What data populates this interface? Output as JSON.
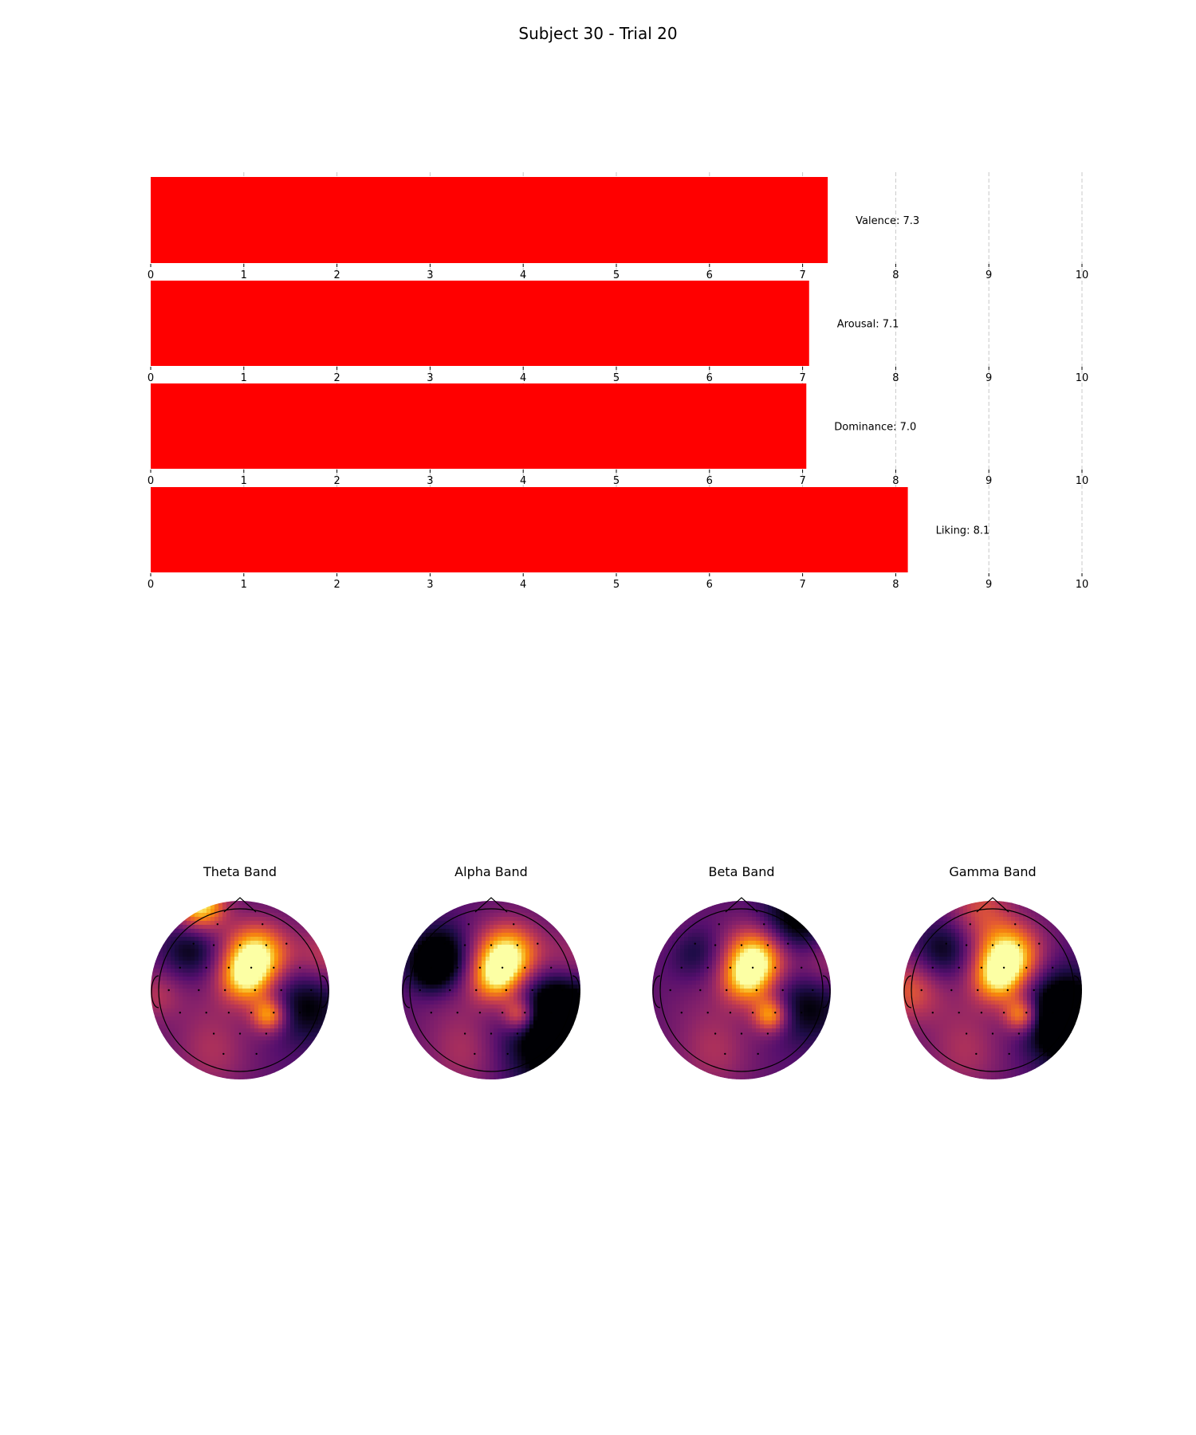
{
  "title": "Subject 30 - Trial 20",
  "chart_data": [
    {
      "type": "bar",
      "orientation": "horizontal",
      "title": "Subject 30 - Trial 20",
      "xlim": [
        0,
        10
      ],
      "xticks": [
        0,
        1,
        2,
        3,
        4,
        5,
        6,
        7,
        8,
        9,
        10
      ],
      "grid": "vertical dashed",
      "bar_color": "#ff0000",
      "bars": [
        {
          "name": "Valence",
          "value": 7.27,
          "label": "Valence: 7.3"
        },
        {
          "name": "Arousal",
          "value": 7.07,
          "label": "Arousal: 7.1"
        },
        {
          "name": "Dominance",
          "value": 7.04,
          "label": "Dominance: 7.0"
        },
        {
          "name": "Liking",
          "value": 8.13,
          "label": "Liking: 8.1"
        }
      ]
    },
    {
      "type": "heatmap",
      "kind": "EEG topographic maps",
      "colormap": "inferno",
      "maps": [
        {
          "title": "Theta Band"
        },
        {
          "title": "Alpha Band"
        },
        {
          "title": "Beta Band"
        },
        {
          "title": "Gamma Band"
        }
      ]
    }
  ]
}
